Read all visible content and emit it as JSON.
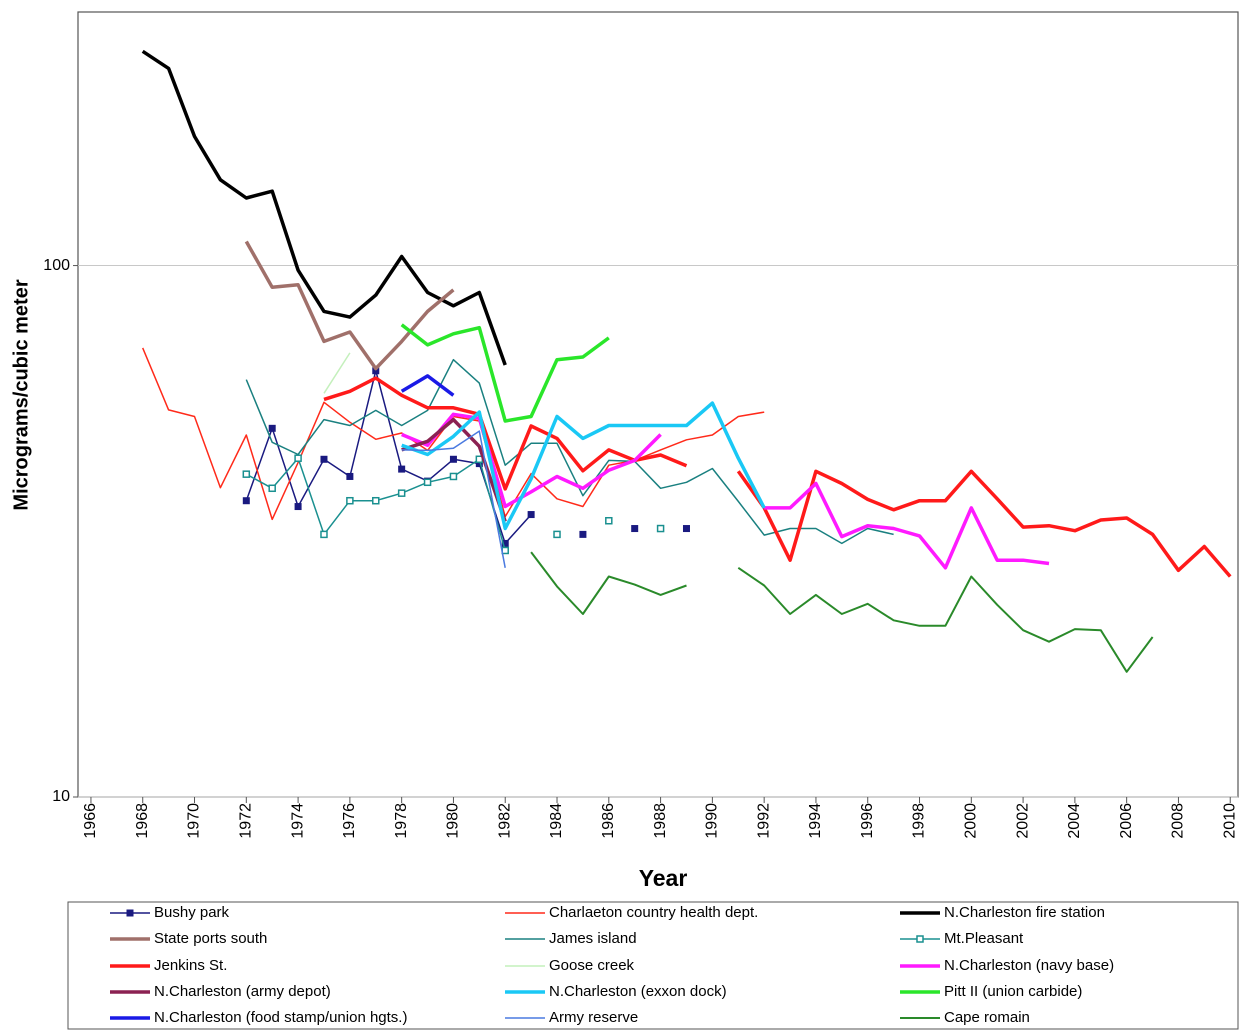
{
  "chart_data": {
    "type": "line",
    "xlabel": "Year",
    "ylabel": "Micrograms/cubic meter",
    "log_y": true,
    "grid": true,
    "xlim": [
      1965.5,
      2010.3
    ],
    "xticks": [
      1966,
      1968,
      1970,
      1972,
      1974,
      1976,
      1978,
      1980,
      1982,
      1984,
      1986,
      1988,
      1990,
      1992,
      1994,
      1996,
      1998,
      2000,
      2002,
      2004,
      2006,
      2008,
      2010
    ],
    "ylim": [
      10,
      300
    ],
    "yticks": [
      10,
      100
    ],
    "legend": "bottom",
    "x": [
      1968,
      1969,
      1970,
      1971,
      1972,
      1973,
      1974,
      1975,
      1976,
      1977,
      1978,
      1979,
      1980,
      1981,
      1982,
      1983,
      1984,
      1985,
      1986,
      1987,
      1988,
      1989,
      1990,
      1991,
      1992,
      1993,
      1994,
      1995,
      1996,
      1997,
      1998,
      1999,
      2000,
      2001,
      2002,
      2003,
      2004,
      2005,
      2006,
      2007,
      2008,
      2009,
      2010
    ],
    "series": [
      {
        "name": "Bushy park",
        "color": "#1a1a80",
        "line_width": 1.5,
        "marker": "filled-square",
        "values": [
          null,
          null,
          null,
          null,
          36.1,
          49.4,
          35.2,
          43.2,
          40.1,
          63.4,
          41.4,
          39.3,
          43.2,
          42.4,
          30,
          34,
          null,
          31.2,
          null,
          32,
          null,
          32,
          null,
          null,
          null,
          null,
          null,
          null,
          null,
          null,
          null,
          null,
          null,
          null,
          null,
          null,
          null,
          null,
          null,
          null,
          null,
          null,
          null
        ]
      },
      {
        "name": "Charlaeton country health dept.",
        "color": "#ff2a1a",
        "line_width": 1.5,
        "values": [
          70,
          53.5,
          52,
          38.2,
          48,
          33.3,
          42.6,
          55.3,
          50.7,
          47.1,
          48.4,
          44.9,
          52,
          51,
          33.7,
          40.6,
          36.4,
          35.2,
          42.1,
          43,
          45,
          47,
          48,
          52,
          53,
          null,
          null,
          null,
          null,
          null,
          null,
          null,
          null,
          null,
          null,
          null,
          null,
          null,
          null,
          null,
          null,
          null,
          null
        ]
      },
      {
        "name": "N.Charleston fire station",
        "color": "#000000",
        "line_width": 3.5,
        "values": [
          253,
          235,
          175,
          145,
          134,
          138,
          98,
          82,
          80,
          88,
          104,
          89,
          84,
          89,
          65,
          null,
          null,
          null,
          null,
          null,
          null,
          null,
          null,
          null,
          null,
          null,
          null,
          null,
          null,
          null,
          null,
          null,
          null,
          null,
          null,
          null,
          null,
          null,
          null,
          null,
          null,
          null,
          null
        ]
      },
      {
        "name": "State ports south",
        "color": "#a0706a",
        "line_width": 3.5,
        "values": [
          null,
          null,
          null,
          null,
          111,
          91,
          92,
          72,
          75,
          64,
          72,
          82,
          90,
          null,
          null,
          null,
          null,
          null,
          null,
          null,
          null,
          null,
          null,
          null,
          null,
          null,
          null,
          null,
          null,
          null,
          null,
          null,
          null,
          null,
          null,
          null,
          null,
          null,
          null,
          null,
          null,
          null,
          null
        ]
      },
      {
        "name": "James island",
        "color": "#1a8080",
        "line_width": 1.5,
        "values": [
          null,
          null,
          null,
          null,
          61,
          46.5,
          44.1,
          51.3,
          50,
          53.4,
          50,
          53.4,
          66.5,
          60.1,
          42.1,
          46.3,
          46.3,
          36.9,
          43,
          42.8,
          38.1,
          39.1,
          41.5,
          36,
          31.1,
          32,
          32,
          30,
          32,
          31.2,
          null,
          null,
          null,
          null,
          null,
          null,
          null,
          null,
          null,
          null,
          null,
          null,
          null
        ]
      },
      {
        "name": "Mt.Pleasant",
        "color": "#1a9090",
        "line_width": 1.5,
        "marker": "hollow-square",
        "values": [
          null,
          null,
          null,
          null,
          40.5,
          38.1,
          43.4,
          31.2,
          36.1,
          36.1,
          37.3,
          39.1,
          40.1,
          43.2,
          29.1,
          null,
          31.2,
          null,
          33.1,
          null,
          32,
          null,
          null,
          null,
          null,
          null,
          null,
          null,
          null,
          null,
          null,
          null,
          null,
          null,
          null,
          null,
          null,
          null,
          null,
          null,
          null,
          null,
          null
        ]
      },
      {
        "name": "Jenkins St.",
        "color": "#ff1a1a",
        "line_width": 3.5,
        "values": [
          null,
          null,
          null,
          null,
          null,
          null,
          null,
          56,
          58,
          61.4,
          57,
          54,
          54,
          52.5,
          38,
          49.9,
          47.3,
          41.1,
          45,
          43,
          44,
          42,
          null,
          41,
          35,
          27.9,
          41,
          38.9,
          36.3,
          34.7,
          36.1,
          36.1,
          41,
          36.4,
          32.2,
          32.4,
          31.7,
          33.2,
          33.5,
          31.2,
          26.7,
          29.6,
          26
        ]
      },
      {
        "name": "Goose creek",
        "color": "#c4f0bc",
        "line_width": 1.5,
        "values": [
          null,
          null,
          null,
          null,
          null,
          null,
          null,
          57.5,
          68.5,
          null,
          null,
          null,
          null,
          null,
          null,
          null,
          null,
          null,
          null,
          null,
          null,
          null,
          null,
          null,
          null,
          null,
          null,
          null,
          null,
          null,
          null,
          null,
          null,
          null,
          null,
          null,
          null,
          null,
          null,
          null,
          null,
          null,
          null
        ]
      },
      {
        "name": "N.Charleston (navy base)",
        "color": "#ff1aff",
        "line_width": 3.5,
        "values": [
          null,
          null,
          null,
          null,
          null,
          null,
          null,
          null,
          null,
          null,
          48.1,
          45.9,
          52.5,
          51.6,
          35.2,
          37.5,
          40.1,
          38.1,
          41.2,
          43,
          48.1,
          null,
          null,
          null,
          35,
          35,
          38.9,
          30.9,
          32.4,
          32,
          31,
          27,
          35,
          27.9,
          27.9,
          27.5,
          null,
          null,
          null,
          null,
          null,
          null,
          null
        ]
      },
      {
        "name": "N.Charleston (army depot)",
        "color": "#8b2252",
        "line_width": 3.5,
        "values": [
          null,
          null,
          null,
          null,
          null,
          null,
          null,
          null,
          null,
          null,
          45,
          46.7,
          51.3,
          45.7,
          33,
          null,
          null,
          null,
          null,
          null,
          null,
          null,
          null,
          null,
          null,
          null,
          null,
          null,
          null,
          null,
          null,
          null,
          null,
          null,
          null,
          null,
          null,
          null,
          null,
          null,
          null,
          null,
          null
        ]
      },
      {
        "name": "N.Charleston (exxon dock)",
        "color": "#1ac8f5",
        "line_width": 3.5,
        "values": [
          null,
          null,
          null,
          null,
          null,
          null,
          null,
          null,
          null,
          null,
          45.9,
          44.1,
          47.7,
          53,
          32,
          39.7,
          52,
          47.3,
          50,
          50,
          50,
          50,
          55.1,
          43.4,
          35,
          null,
          null,
          null,
          null,
          null,
          null,
          null,
          null,
          null,
          null,
          null,
          null,
          null,
          null,
          null,
          null,
          null,
          null
        ]
      },
      {
        "name": "Pitt II (union carbide)",
        "color": "#2ae62a",
        "line_width": 3.5,
        "values": [
          null,
          null,
          null,
          null,
          null,
          null,
          null,
          null,
          null,
          null,
          77.4,
          70.9,
          74.4,
          76.4,
          51,
          52,
          66.5,
          67.3,
          73.1,
          null,
          null,
          null,
          null,
          null,
          null,
          null,
          null,
          null,
          null,
          null,
          null,
          null,
          null,
          null,
          null,
          null,
          null,
          null,
          null,
          null,
          null,
          null,
          null
        ]
      },
      {
        "name": "N.Charleston (food stamp/union hgts.)",
        "color": "#1a1ae6",
        "line_width": 3.5,
        "values": [
          null,
          null,
          null,
          null,
          null,
          null,
          null,
          null,
          null,
          null,
          58,
          62,
          57,
          null,
          null,
          null,
          null,
          null,
          null,
          null,
          null,
          null,
          null,
          null,
          null,
          null,
          null,
          null,
          null,
          null,
          null,
          null,
          null,
          null,
          null,
          null,
          null,
          null,
          null,
          null,
          null,
          null,
          null
        ]
      },
      {
        "name": "Army reserve",
        "color": "#4a7ae0",
        "line_width": 1.5,
        "values": [
          null,
          null,
          null,
          null,
          null,
          null,
          null,
          null,
          null,
          null,
          45,
          44.9,
          45.3,
          48.8,
          27,
          null,
          null,
          null,
          null,
          null,
          null,
          null,
          null,
          null,
          null,
          null,
          null,
          null,
          null,
          null,
          null,
          null,
          null,
          null,
          null,
          null,
          null,
          null,
          null,
          null,
          null,
          null,
          null
        ]
      },
      {
        "name": "Cape romain",
        "color": "#2a8a2a",
        "line_width": 2,
        "values": [
          null,
          null,
          null,
          null,
          null,
          null,
          null,
          null,
          null,
          null,
          null,
          null,
          null,
          null,
          null,
          28.9,
          24.9,
          22.1,
          26,
          25.1,
          24,
          25,
          null,
          27,
          25,
          22.1,
          24,
          22.1,
          23.1,
          21.5,
          21,
          21,
          26,
          23,
          20.6,
          19.6,
          20.7,
          20.6,
          17.2,
          20,
          null,
          null,
          null
        ]
      }
    ]
  }
}
